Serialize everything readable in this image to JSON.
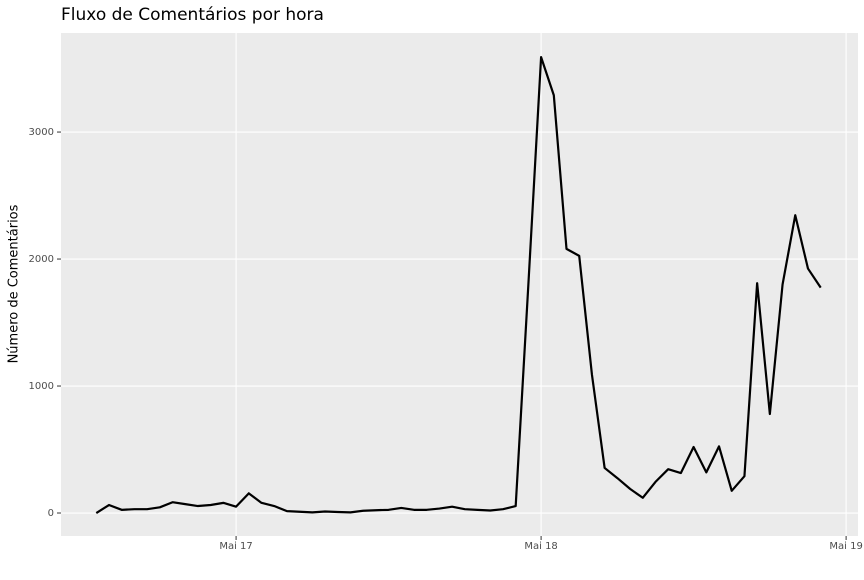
{
  "chart_data": {
    "type": "line",
    "title": "Fluxo de Comentários por hora",
    "ylabel": "Número de Comentários",
    "x": [
      16.5417,
      16.5833,
      16.625,
      16.6667,
      16.7083,
      16.75,
      16.7917,
      16.8333,
      16.875,
      16.9167,
      16.9583,
      17,
      17.0417,
      17.0833,
      17.125,
      17.1667,
      17.2083,
      17.25,
      17.2917,
      17.3333,
      17.375,
      17.4167,
      17.4583,
      17.5,
      17.5417,
      17.5833,
      17.625,
      17.6667,
      17.7083,
      17.75,
      17.7917,
      17.8333,
      17.875,
      17.9167,
      17.9583,
      18,
      18.0417,
      18.0833,
      18.125,
      18.1667,
      18.2083,
      18.25,
      18.2917,
      18.3333,
      18.375,
      18.4167,
      18.4583,
      18.5,
      18.5417,
      18.5833,
      18.625,
      18.6667,
      18.7083,
      18.75,
      18.7917,
      18.8333,
      18.875,
      18.9167
    ],
    "series": [
      {
        "color": "#000000",
        "values": [
          0,
          63,
          25,
          30,
          30,
          45,
          85,
          70,
          55,
          63,
          80,
          50,
          155,
          80,
          55,
          15,
          10,
          5,
          12,
          8,
          5,
          18,
          22,
          25,
          40,
          25,
          25,
          35,
          50,
          30,
          25,
          20,
          30,
          55,
          1800,
          3590,
          3290,
          2080,
          2025,
          1090,
          355,
          275,
          190,
          120,
          245,
          345,
          315,
          520,
          320,
          525,
          175,
          290,
          1810,
          780,
          1800,
          2345,
          1925,
          1775
        ]
      }
    ],
    "xlim": [
      16.426,
      19.039
    ],
    "xticks": [
      {
        "value": 17,
        "label": "Mai 17"
      },
      {
        "value": 18,
        "label": "Mai 18"
      },
      {
        "value": 19,
        "label": "Mai 19"
      }
    ],
    "ylim": [
      -181,
      3780
    ],
    "yticks": [
      0,
      1000,
      2000,
      3000
    ],
    "grid": true
  }
}
